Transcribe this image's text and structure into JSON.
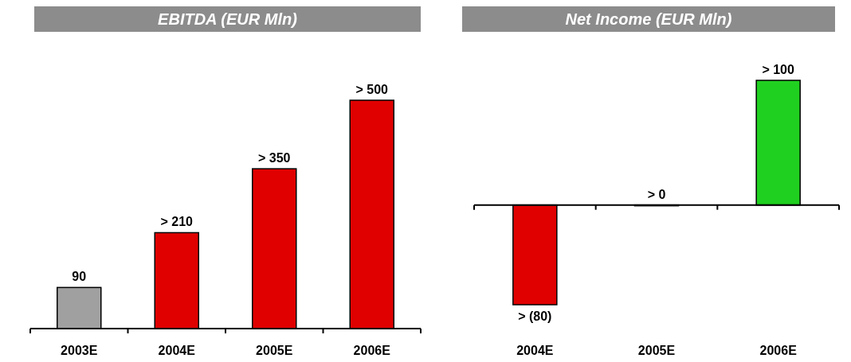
{
  "chart_data": [
    {
      "type": "bar",
      "title": "EBITDA (EUR Mln)",
      "categories": [
        "2003E",
        "2004E",
        "2005E",
        "2006E"
      ],
      "values": [
        90,
        210,
        350,
        500
      ],
      "colors": [
        "#a0a0a0",
        "#e00000",
        "#e00000",
        "#e00000"
      ],
      "value_labels": [
        "90",
        "> 210",
        "> 350",
        "> 500"
      ]
    },
    {
      "type": "bar",
      "title": "Net Income (EUR Mln)",
      "categories": [
        "2004E",
        "2005E",
        "2006E"
      ],
      "values": [
        -80,
        0,
        100
      ],
      "colors": [
        "#e00000",
        "#20d020",
        "#20d020"
      ],
      "value_labels": [
        "> (80)",
        "> 0",
        "> 100"
      ]
    }
  ]
}
